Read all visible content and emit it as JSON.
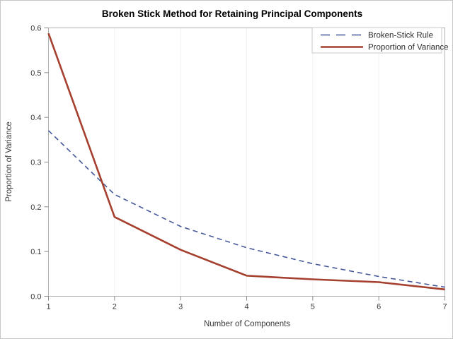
{
  "chart_data": {
    "type": "line",
    "title": "Broken Stick Method for Retaining Principal Components",
    "xlabel": "Number of Components",
    "ylabel": "Proportion of Variance",
    "x": [
      1,
      2,
      3,
      4,
      5,
      6,
      7
    ],
    "xlim": [
      1,
      7
    ],
    "ylim": [
      0,
      0.6
    ],
    "x_tick_labels": [
      "1",
      "2",
      "3",
      "4",
      "5",
      "6",
      "7"
    ],
    "y_ticks": [
      0.0,
      0.1,
      0.2,
      0.3,
      0.4,
      0.5,
      0.6
    ],
    "y_tick_labels": [
      "0.0",
      "0.1",
      "0.2",
      "0.3",
      "0.4",
      "0.5",
      "0.6"
    ],
    "grid": "vertical-gridlines-only",
    "legend_position": "top-right-inside",
    "series": [
      {
        "name": "Broken-Stick Rule",
        "style": "dashed",
        "color": "#46589a",
        "line_width": 1.6,
        "values": [
          0.3704,
          0.2276,
          0.1561,
          0.1085,
          0.0728,
          0.0442,
          0.0204
        ]
      },
      {
        "name": "Proportion of Variance",
        "style": "solid",
        "color": "#a5402e",
        "line_width": 2.6,
        "values": [
          0.5879,
          0.1774,
          0.1039,
          0.046,
          0.0379,
          0.0316,
          0.0153
        ]
      }
    ],
    "colors": {
      "background": "#ffffff",
      "figure_border": "#c6c6c6",
      "gridline": "#f2f2f2",
      "frame": "#b1b1b1",
      "tick": "#8c8c8c",
      "tick_label": "#3a3a3a",
      "title": "#000000",
      "legend_border": "#c9c9c9",
      "legend_background": "#ffffff"
    }
  }
}
